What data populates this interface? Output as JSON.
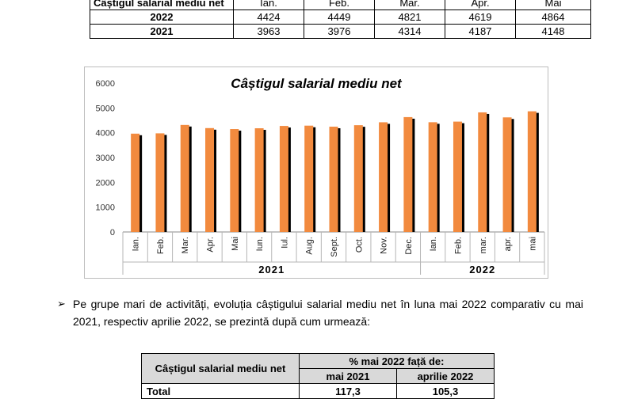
{
  "top_table": {
    "header_label": "Câștigul salarial mediu net",
    "months": [
      "Ian.",
      "Feb.",
      "Mar.",
      "Apr.",
      "Mai"
    ],
    "rows": [
      {
        "year": "2022",
        "values": [
          "4424",
          "4449",
          "4821",
          "4619",
          "4864"
        ]
      },
      {
        "year": "2021",
        "values": [
          "3963",
          "3976",
          "4314",
          "4187",
          "4148"
        ]
      }
    ]
  },
  "chart_data": {
    "type": "bar",
    "title": "Câștigul salarial mediu net",
    "ylim": [
      0,
      6000
    ],
    "yticks": [
      "0",
      "1000",
      "2000",
      "3000",
      "4000",
      "5000",
      "6000"
    ],
    "categories": [
      "Ian.",
      "Feb.",
      "Mar.",
      "Apr.",
      "Mai",
      "Iun.",
      "Iul.",
      "Aug.",
      "Sept.",
      "Oct.",
      "Nov.",
      "Dec.",
      "Ian.",
      "Feb.",
      "mar.",
      "apr.",
      "mai"
    ],
    "groups": [
      {
        "label": "2021",
        "count": 12
      },
      {
        "label": "2022",
        "count": 5
      }
    ],
    "values": [
      3963,
      3976,
      4314,
      4187,
      4148,
      4180,
      4274,
      4286,
      4245,
      4304,
      4422,
      4630,
      4424,
      4449,
      4821,
      4619,
      4864
    ],
    "colors": {
      "bar": "#f28a3e",
      "shadow": "#000000"
    },
    "grid": false
  },
  "paragraph": {
    "bullet": "➢",
    "text": "Pe grupe mari de activități, evoluția câștigului salarial mediu net în luna mai 2022 comparativ cu mai 2021, respectiv aprilie 2022, se prezintă după cum urmează:"
  },
  "bottom_table": {
    "row_header": "Câștigul salarial mediu net",
    "group_header": "% mai 2022 față de:",
    "col1": "mai 2021",
    "col2": "aprilie  2022",
    "total_label": "Total",
    "total_val1": "117,3",
    "total_val2": "105,3"
  }
}
